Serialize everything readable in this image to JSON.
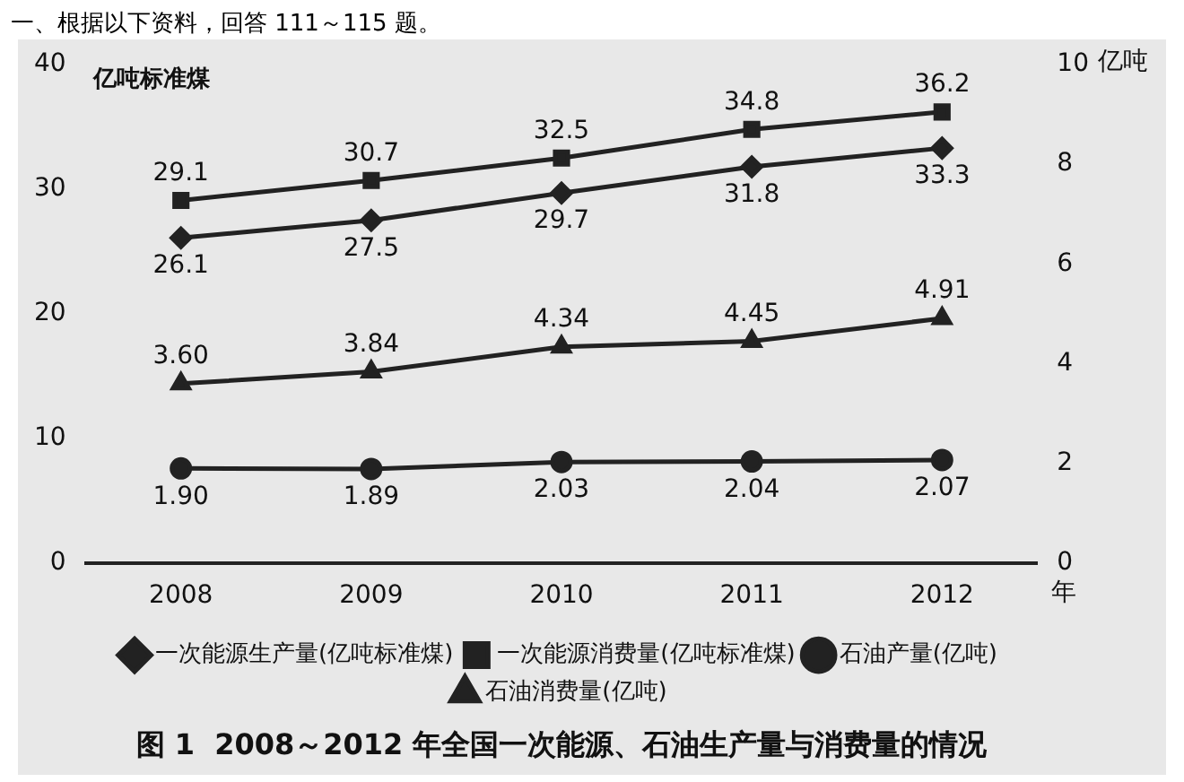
{
  "chart_data": {
    "type": "line",
    "title": "图 1  2008～2012 年全国一次能源、石油生产量与消费量的情况",
    "annotations": [
      "一、根据以下资料，回答 111～115 题。"
    ],
    "xlabel": "年",
    "ylabel": "亿吨标准煤",
    "y2label": "亿吨",
    "categories": [
      "2008",
      "2009",
      "2010",
      "2011",
      "2012"
    ],
    "ylim": [
      0,
      40
    ],
    "yticks": [
      0,
      10,
      20,
      30,
      40
    ],
    "y2lim": [
      0,
      10
    ],
    "y2ticks": [
      0,
      2,
      4,
      6,
      8,
      10
    ],
    "grid": false,
    "legend": "bottom",
    "line_style": "solid",
    "series": [
      {
        "name": "一次能源生产量(亿吨标准煤)",
        "color": "#222222",
        "marker": "diamond",
        "values": [
          26.1,
          27.5,
          29.7,
          31.8,
          33.3
        ],
        "value_labels": [
          "26.1",
          "27.5",
          "29.7",
          "31.8",
          "33.3"
        ]
      },
      {
        "name": "一次能源消费量(亿吨标准煤)",
        "color": "#222222",
        "marker": "square",
        "values": [
          29.1,
          30.7,
          32.5,
          34.8,
          36.2
        ],
        "value_labels": [
          "29.1",
          "30.7",
          "32.5",
          "34.8",
          "36.2"
        ]
      },
      {
        "name": "石油产量(亿吨)",
        "color": "#222222",
        "marker": "circle",
        "axis": "y2",
        "values": [
          1.9,
          1.89,
          2.03,
          2.04,
          2.07
        ],
        "value_labels": [
          "1.90",
          "1.89",
          "2.03",
          "2.04",
          "2.07"
        ]
      },
      {
        "name": "石油消费量(亿吨)",
        "color": "#222222",
        "marker": "triangle",
        "axis": "y2",
        "values": [
          3.6,
          3.84,
          4.34,
          4.45,
          4.91
        ],
        "value_labels": [
          "3.60",
          "3.84",
          "4.34",
          "4.45",
          "4.91"
        ]
      }
    ]
  }
}
